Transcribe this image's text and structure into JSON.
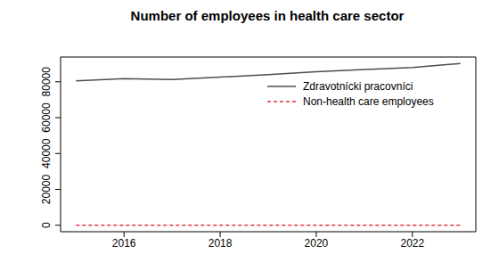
{
  "chart_data": {
    "type": "line",
    "title": "Number of employees in health care sector",
    "x": [
      2015,
      2016,
      2017,
      2018,
      2019,
      2020,
      2021,
      2022,
      2023
    ],
    "series": [
      {
        "name": "Zdravotnícki pracovníci",
        "color": "#4d4d4d",
        "line_style": "solid",
        "values": [
          80500,
          81700,
          81200,
          82600,
          84000,
          85600,
          86800,
          88000,
          90200
        ]
      },
      {
        "name": "Non-health care employees",
        "color": "#e0363d",
        "line_style": "dashed",
        "values": [
          0,
          0,
          0,
          0,
          0,
          0,
          0,
          0,
          0
        ]
      }
    ],
    "xlim": [
      2014.68,
      2023.32
    ],
    "xticks": [
      2016,
      2018,
      2020,
      2022
    ],
    "ylim": [
      -3600,
      93800
    ],
    "yticks": [
      0,
      20000,
      40000,
      60000,
      80000
    ],
    "legend": "topright",
    "grid": false
  }
}
